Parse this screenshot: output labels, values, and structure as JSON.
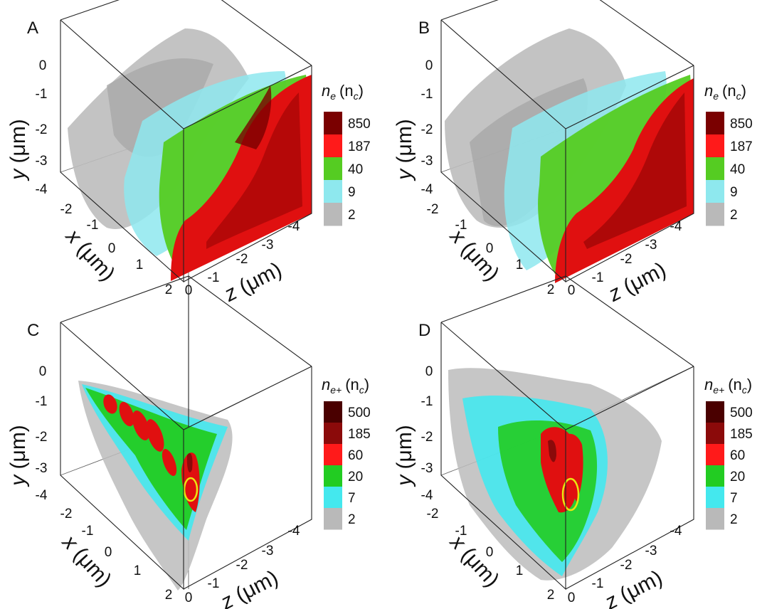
{
  "panels": [
    {
      "letter": "A",
      "colorbar": {
        "title_main": "n",
        "title_sub": "e",
        "title_unit": "(n",
        "title_unit_sub": "c",
        "title_close": ")",
        "labels": [
          "850",
          "187",
          "40",
          "9",
          "2"
        ],
        "colors": [
          "#7a0000",
          "#ff1a1a",
          "#55cc22",
          "#8ee8ee",
          "#b9b9b9"
        ]
      },
      "y_ticks": [
        "0",
        "-1",
        "-2",
        "-3",
        "-4"
      ],
      "x_ticks": [
        "-2",
        "-1",
        "0",
        "1",
        "2"
      ],
      "z_ticks": [
        "0",
        "-1",
        "-2",
        "-3",
        "-4"
      ]
    },
    {
      "letter": "B",
      "colorbar": {
        "title_main": "n",
        "title_sub": "e",
        "title_unit": "(n",
        "title_unit_sub": "c",
        "title_close": ")",
        "labels": [
          "850",
          "187",
          "40",
          "9",
          "2"
        ],
        "colors": [
          "#7a0000",
          "#ff1a1a",
          "#55cc22",
          "#8ee8ee",
          "#b9b9b9"
        ]
      },
      "y_ticks": [
        "0",
        "-1",
        "-2",
        "-3",
        "-4"
      ],
      "x_ticks": [
        "-2",
        "-1",
        "0",
        "1",
        "2"
      ],
      "z_ticks": [
        "0",
        "-1",
        "-2",
        "-3",
        "-4"
      ]
    },
    {
      "letter": "C",
      "colorbar": {
        "title_main": "n",
        "title_sub": "e+",
        "title_unit": "(n",
        "title_unit_sub": "c",
        "title_close": ")",
        "labels": [
          "500",
          "185",
          "60",
          "20",
          "7",
          "2"
        ],
        "colors": [
          "#4a0000",
          "#8b0a0a",
          "#ff1a1a",
          "#22cc22",
          "#44e8ee",
          "#b9b9b9"
        ]
      },
      "y_ticks": [
        "0",
        "-1",
        "-2",
        "-3",
        "-4"
      ],
      "x_ticks": [
        "-2",
        "-1",
        "0",
        "1",
        "2"
      ],
      "z_ticks": [
        "0",
        "-1",
        "-2",
        "-3",
        "-4"
      ]
    },
    {
      "letter": "D",
      "colorbar": {
        "title_main": "n",
        "title_sub": "e+",
        "title_unit": "(n",
        "title_unit_sub": "c",
        "title_close": ")",
        "labels": [
          "500",
          "185",
          "60",
          "20",
          "7",
          "2"
        ],
        "colors": [
          "#4a0000",
          "#8b0a0a",
          "#ff1a1a",
          "#22cc22",
          "#44e8ee",
          "#b9b9b9"
        ]
      },
      "y_ticks": [
        "0",
        "-1",
        "-2",
        "-3",
        "-4"
      ],
      "x_ticks": [
        "-2",
        "-1",
        "0",
        "1",
        "2"
      ],
      "z_ticks": [
        "0",
        "-1",
        "-2",
        "-3",
        "-4"
      ]
    }
  ],
  "axis_labels": {
    "y": {
      "name": "y",
      "unit": "(μm)"
    },
    "x": {
      "name": "x",
      "unit": "(μm)"
    },
    "z": {
      "name": "z",
      "unit": "(μm)"
    }
  },
  "highlight_color": "#e8e810"
}
